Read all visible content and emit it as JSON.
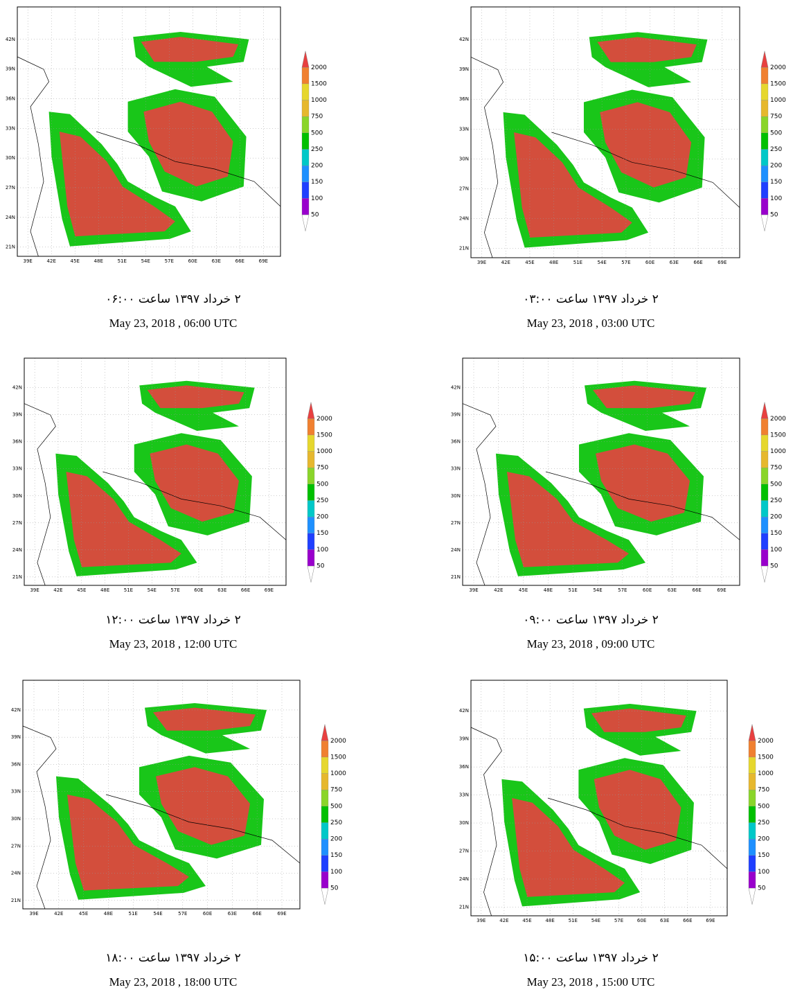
{
  "lat_ticks": [
    "42N",
    "39N",
    "36N",
    "33N",
    "30N",
    "27N",
    "24N",
    "21N"
  ],
  "lon_ticks": [
    "39E",
    "42E",
    "45E",
    "48E",
    "51E",
    "54E",
    "57E",
    "60E",
    "63E",
    "66E",
    "69E"
  ],
  "colorbar": {
    "levels": [
      50,
      100,
      150,
      200,
      250,
      500,
      750,
      1000,
      1500,
      2000
    ],
    "colors": [
      "#9900cc",
      "#1f3fff",
      "#1e90ff",
      "#00c8c8",
      "#00c000",
      "#8ad52a",
      "#e6b82e",
      "#e6d72e",
      "#f08030",
      "#e84040"
    ]
  },
  "panels": [
    {
      "caption_fa": "۲ خرداد ۱۳۹۷ ساعت ۰۳:۰۰",
      "caption_en": "May 23, 2018 , 03:00 UTC"
    },
    {
      "caption_fa": "۲ خرداد ۱۳۹۷ ساعت ۰۶:۰۰",
      "caption_en": "May 23, 2018 , 06:00 UTC"
    },
    {
      "caption_fa": "۲ خرداد ۱۳۹۷ ساعت ۰۹:۰۰",
      "caption_en": "May 23, 2018 , 09:00 UTC"
    },
    {
      "caption_fa": "۲ خرداد ۱۳۹۷ ساعت ۱۲:۰۰",
      "caption_en": "May 23, 2018 , 12:00 UTC"
    },
    {
      "caption_fa": "۲ خرداد ۱۳۹۷ ساعت ۱۵:۰۰",
      "caption_en": "May 23, 2018 , 15:00 UTC"
    },
    {
      "caption_fa": "۲ خرداد ۱۳۹۷ ساعت ۱۸:۰۰",
      "caption_en": "May 23, 2018 , 18:00 UTC"
    }
  ]
}
